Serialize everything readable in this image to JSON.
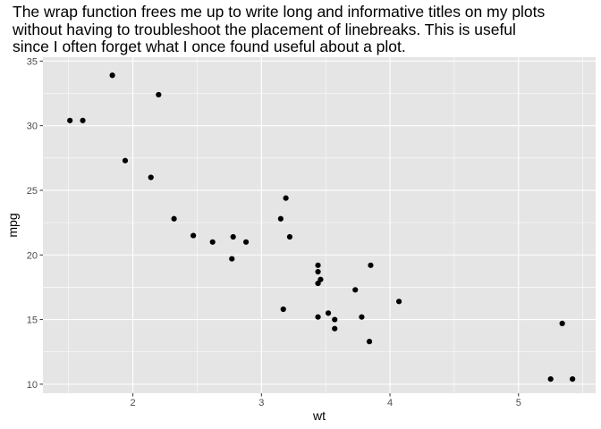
{
  "chart_data": {
    "type": "scatter",
    "title_lines": [
      "The wrap function frees me up to write long and informative titles on my plots",
      "without having to troubleshoot the placement of linebreaks. This is useful",
      "since I often forget what I once found useful about a plot."
    ],
    "xlabel": "wt",
    "ylabel": "mpg",
    "xlim": [
      1.3,
      5.6
    ],
    "ylim": [
      9.3,
      35.3
    ],
    "x_ticks": [
      2,
      3,
      4,
      5
    ],
    "y_ticks": [
      10,
      15,
      20,
      25,
      30,
      35
    ],
    "grid": true,
    "panel_color": "#e5e5e5",
    "grid_color": "#ffffff",
    "point_color": "#000000",
    "points": [
      {
        "x": 1.51,
        "y": 30.4
      },
      {
        "x": 1.61,
        "y": 30.4
      },
      {
        "x": 1.84,
        "y": 33.9
      },
      {
        "x": 1.94,
        "y": 27.3
      },
      {
        "x": 2.14,
        "y": 26.0
      },
      {
        "x": 2.2,
        "y": 32.4
      },
      {
        "x": 2.32,
        "y": 22.8
      },
      {
        "x": 2.47,
        "y": 21.5
      },
      {
        "x": 2.62,
        "y": 21.0
      },
      {
        "x": 2.77,
        "y": 19.7
      },
      {
        "x": 2.78,
        "y": 21.4
      },
      {
        "x": 2.88,
        "y": 21.0
      },
      {
        "x": 3.15,
        "y": 22.8
      },
      {
        "x": 3.17,
        "y": 15.8
      },
      {
        "x": 3.19,
        "y": 24.4
      },
      {
        "x": 3.22,
        "y": 21.4
      },
      {
        "x": 3.44,
        "y": 18.7
      },
      {
        "x": 3.44,
        "y": 19.2
      },
      {
        "x": 3.44,
        "y": 17.8
      },
      {
        "x": 3.44,
        "y": 15.2
      },
      {
        "x": 3.46,
        "y": 18.1
      },
      {
        "x": 3.52,
        "y": 15.5
      },
      {
        "x": 3.57,
        "y": 15.0
      },
      {
        "x": 3.57,
        "y": 14.3
      },
      {
        "x": 3.73,
        "y": 17.3
      },
      {
        "x": 3.78,
        "y": 15.2
      },
      {
        "x": 3.84,
        "y": 13.3
      },
      {
        "x": 3.85,
        "y": 19.2
      },
      {
        "x": 4.07,
        "y": 16.4
      },
      {
        "x": 5.25,
        "y": 10.4
      },
      {
        "x": 5.34,
        "y": 14.7
      },
      {
        "x": 5.42,
        "y": 10.4
      }
    ]
  }
}
